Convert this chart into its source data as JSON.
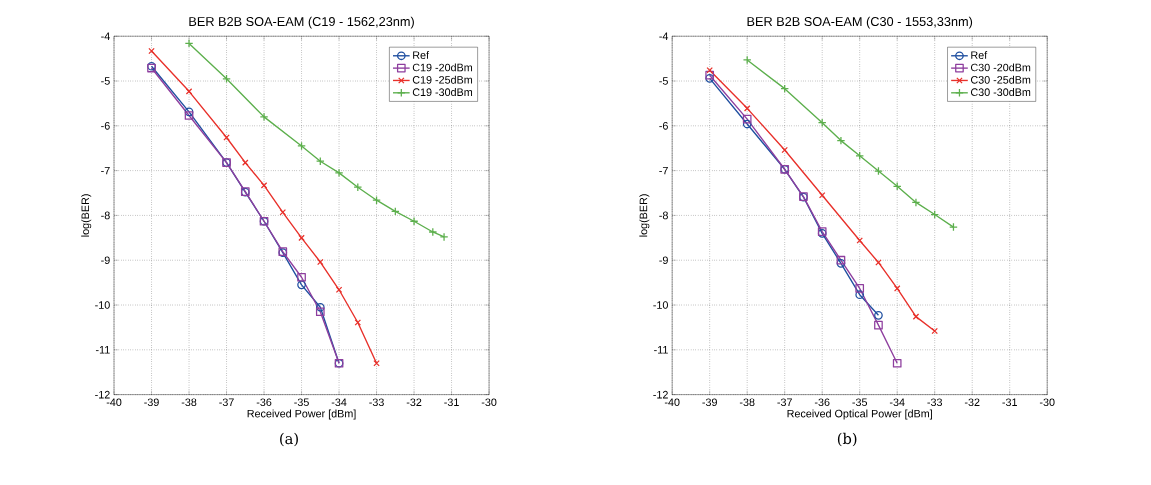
{
  "chart_data": [
    {
      "type": "line",
      "title": "BER B2B SOA-EAM (C19 - 1562,23nm)",
      "xlabel": "Received Power [dBm]",
      "ylabel": "log(BER)",
      "annotations": [
        "(a)"
      ],
      "xlim": [
        -40,
        -30
      ],
      "xticks": [
        -40,
        -39,
        -38,
        -37,
        -36,
        -35,
        -34,
        -33,
        -32,
        -31,
        -30
      ],
      "ylim": [
        -12,
        -4
      ],
      "yticks": [
        -12,
        -11,
        -10,
        -9,
        -8,
        -7,
        -6,
        -5,
        -4
      ],
      "grid": true,
      "legend": "top right",
      "line_style": "solid",
      "series": [
        {
          "name": "Ref",
          "color": "#1f4fa0",
          "marker": "circle",
          "x": [
            -39,
            -38,
            -37,
            -36.5,
            -36,
            -35.5,
            -35,
            -34.5,
            -34
          ],
          "values": [
            -4.67,
            -5.69,
            -6.82,
            -7.48,
            -8.13,
            -8.83,
            -9.55,
            -10.05,
            -11.3
          ]
        },
        {
          "name": "C19 -20dBm",
          "color": "#8e3e9e",
          "marker": "square",
          "x": [
            -39,
            -38,
            -37,
            -36.5,
            -36,
            -35.5,
            -35,
            -34.5,
            -34
          ],
          "values": [
            -4.71,
            -5.77,
            -6.82,
            -7.47,
            -8.13,
            -8.81,
            -9.38,
            -10.15,
            -11.3
          ]
        },
        {
          "name": "C19 -25dBm",
          "color": "#e8302a",
          "marker": "cross",
          "x": [
            -39,
            -38,
            -37,
            -36.5,
            -36,
            -35.5,
            -35,
            -34.5,
            -34,
            -33.5,
            -33
          ],
          "values": [
            -4.33,
            -5.23,
            -6.26,
            -6.82,
            -7.33,
            -7.93,
            -8.5,
            -9.04,
            -9.66,
            -10.39,
            -11.3
          ]
        },
        {
          "name": "C19 -30dBm",
          "color": "#5caf4c",
          "marker": "plus",
          "x": [
            -38,
            -37,
            -36,
            -35,
            -34.5,
            -34,
            -33.5,
            -33,
            -32.5,
            -32,
            -31.5,
            -31.2
          ],
          "values": [
            -4.16,
            -4.95,
            -5.8,
            -6.45,
            -6.79,
            -7.05,
            -7.37,
            -7.66,
            -7.91,
            -8.13,
            -8.37,
            -8.48
          ]
        }
      ]
    },
    {
      "type": "line",
      "title": "BER B2B SOA-EAM (C30 - 1553,33nm)",
      "xlabel": "Received Optical Power [dBm]",
      "ylabel": "log(BER)",
      "annotations": [
        "(b)"
      ],
      "xlim": [
        -40,
        -30
      ],
      "xticks": [
        -40,
        -39,
        -38,
        -37,
        -36,
        -35,
        -34,
        -33,
        -32,
        -31,
        -30
      ],
      "ylim": [
        -12,
        -4
      ],
      "yticks": [
        -12,
        -11,
        -10,
        -9,
        -8,
        -7,
        -6,
        -5,
        -4
      ],
      "grid": true,
      "legend": "top right",
      "line_style": "solid",
      "series": [
        {
          "name": "Ref",
          "color": "#1f4fa0",
          "marker": "circle",
          "x": [
            -39,
            -38,
            -37,
            -36.5,
            -36,
            -35.5,
            -35,
            -34.5
          ],
          "values": [
            -4.94,
            -5.96,
            -6.97,
            -7.59,
            -8.4,
            -9.07,
            -9.77,
            -10.23
          ]
        },
        {
          "name": "C30 -20dBm",
          "color": "#8e3e9e",
          "marker": "square",
          "x": [
            -39,
            -38,
            -37,
            -36.5,
            -36,
            -35.5,
            -35,
            -34.5,
            -34
          ],
          "values": [
            -4.87,
            -5.85,
            -6.97,
            -7.58,
            -8.36,
            -9.0,
            -9.63,
            -10.45,
            -11.3
          ]
        },
        {
          "name": "C30 -25dBm",
          "color": "#e8302a",
          "marker": "cross",
          "x": [
            -39,
            -38,
            -37,
            -36,
            -35,
            -34.5,
            -34,
            -33.5,
            -33
          ],
          "values": [
            -4.76,
            -5.61,
            -6.54,
            -7.55,
            -8.56,
            -9.05,
            -9.63,
            -10.26,
            -10.58
          ]
        },
        {
          "name": "C30 -30dBm",
          "color": "#5caf4c",
          "marker": "plus",
          "x": [
            -38,
            -37,
            -36,
            -35.5,
            -35,
            -34.5,
            -34,
            -33.5,
            -33,
            -32.5
          ],
          "values": [
            -4.53,
            -5.17,
            -5.93,
            -6.33,
            -6.67,
            -7.01,
            -7.35,
            -7.71,
            -7.98,
            -8.26
          ]
        }
      ]
    }
  ]
}
